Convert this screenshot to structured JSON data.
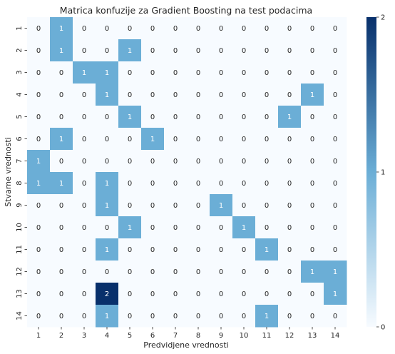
{
  "chart_data": {
    "type": "heatmap",
    "title": "Matrica konfuzije za Gradient Boosting na test podacima",
    "xlabel": "Predvidjene vrednosti",
    "ylabel": "Stvarne vrednosti",
    "x_categories": [
      "1",
      "2",
      "3",
      "4",
      "5",
      "6",
      "7",
      "8",
      "9",
      "10",
      "11",
      "12",
      "13",
      "14"
    ],
    "y_categories": [
      "1",
      "2",
      "3",
      "4",
      "5",
      "6",
      "7",
      "8",
      "9",
      "10",
      "11",
      "12",
      "13",
      "14"
    ],
    "values": [
      [
        0,
        1,
        0,
        0,
        0,
        0,
        0,
        0,
        0,
        0,
        0,
        0,
        0,
        0
      ],
      [
        0,
        1,
        0,
        0,
        1,
        0,
        0,
        0,
        0,
        0,
        0,
        0,
        0,
        0
      ],
      [
        0,
        0,
        1,
        1,
        0,
        0,
        0,
        0,
        0,
        0,
        0,
        0,
        0,
        0
      ],
      [
        0,
        0,
        0,
        1,
        0,
        0,
        0,
        0,
        0,
        0,
        0,
        0,
        1,
        0
      ],
      [
        0,
        0,
        0,
        0,
        1,
        0,
        0,
        0,
        0,
        0,
        0,
        1,
        0,
        0
      ],
      [
        0,
        1,
        0,
        0,
        0,
        1,
        0,
        0,
        0,
        0,
        0,
        0,
        0,
        0
      ],
      [
        1,
        0,
        0,
        0,
        0,
        0,
        0,
        0,
        0,
        0,
        0,
        0,
        0,
        0
      ],
      [
        1,
        1,
        0,
        1,
        0,
        0,
        0,
        0,
        0,
        0,
        0,
        0,
        0,
        0
      ],
      [
        0,
        0,
        0,
        1,
        0,
        0,
        0,
        0,
        1,
        0,
        0,
        0,
        0,
        0
      ],
      [
        0,
        0,
        0,
        0,
        1,
        0,
        0,
        0,
        0,
        1,
        0,
        0,
        0,
        0
      ],
      [
        0,
        0,
        0,
        1,
        0,
        0,
        0,
        0,
        0,
        0,
        1,
        0,
        0,
        0
      ],
      [
        0,
        0,
        0,
        0,
        0,
        0,
        0,
        0,
        0,
        0,
        0,
        0,
        1,
        1
      ],
      [
        0,
        0,
        0,
        2,
        0,
        0,
        0,
        0,
        0,
        0,
        0,
        0,
        0,
        1
      ],
      [
        0,
        0,
        0,
        1,
        0,
        0,
        0,
        0,
        0,
        0,
        1,
        0,
        0,
        0
      ]
    ],
    "vmin": 0,
    "vmax": 2,
    "colorbar_ticks": [
      0,
      1,
      2
    ],
    "colormap": "Blues",
    "colors": {
      "low": "#f7fbff",
      "mid": "#6baed6",
      "high": "#08306b",
      "text_dark": "#262626",
      "text_light": "#ffffff"
    },
    "annotations": true,
    "grid": false
  }
}
